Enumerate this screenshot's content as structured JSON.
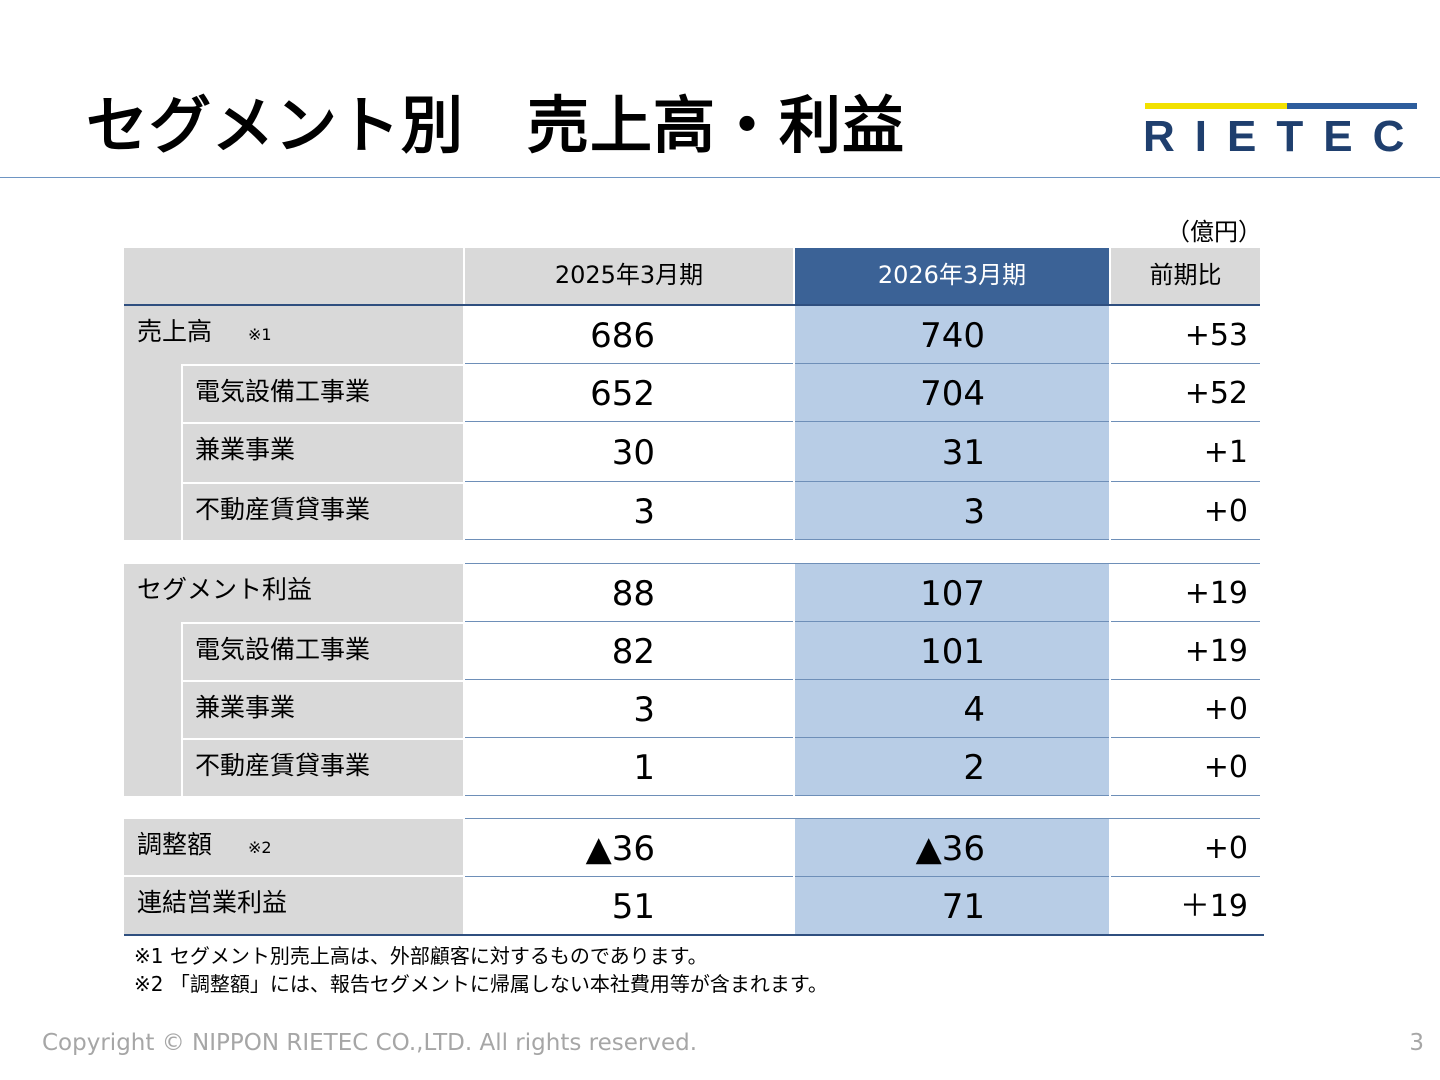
{
  "title": "セグメント別　売上高・利益",
  "logo_text": "RIETEC",
  "unit": "（億円）",
  "headers": {
    "label": "",
    "fy2025": "2025年3月期",
    "fy2026": "2026年3月期",
    "diff": "前期比"
  },
  "sales": {
    "label": "売上高",
    "note": "※1",
    "total": {
      "fy2025": "686",
      "fy2026": "740",
      "diff": "+53"
    },
    "items": [
      {
        "label": "電気設備工事業",
        "fy2025": "652",
        "fy2026": "704",
        "diff": "+52"
      },
      {
        "label": "兼業事業",
        "fy2025": "30",
        "fy2026": "31",
        "diff": "+1"
      },
      {
        "label": "不動産賃貸事業",
        "fy2025": "3",
        "fy2026": "3",
        "diff": "+0"
      }
    ]
  },
  "segment_profit": {
    "label": "セグメント利益",
    "total": {
      "fy2025": "88",
      "fy2026": "107",
      "diff": "+19"
    },
    "items": [
      {
        "label": "電気設備工事業",
        "fy2025": "82",
        "fy2026": "101",
        "diff": "+19"
      },
      {
        "label": "兼業事業",
        "fy2025": "3",
        "fy2026": "4",
        "diff": "+0"
      },
      {
        "label": "不動産賃貸事業",
        "fy2025": "1",
        "fy2026": "2",
        "diff": "+0"
      }
    ]
  },
  "adjustment": {
    "label": "調整額",
    "note": "※2",
    "fy2025": "▲36",
    "fy2026": "▲36",
    "diff": "+0"
  },
  "consolidated": {
    "label": "連結営業利益",
    "fy2025": "51",
    "fy2026": "71",
    "diff": "＋19"
  },
  "footnotes": [
    "※1 セグメント別売上高は、外部顧客に対するものであります。",
    "※2 「調整額」には、報告セグメントに帰属しない本社費用等が含まれます。"
  ],
  "copyright": "Copyright © NIPPON RIETEC CO.,LTD. All rights reserved.",
  "page_number": "3",
  "colors": {
    "header_2026": "#3b6296",
    "col_2026": "#b8cde6",
    "label_gray": "#d9d9d9",
    "logo_yellow": "#f2e100",
    "logo_blue": "#2d5d9c"
  }
}
